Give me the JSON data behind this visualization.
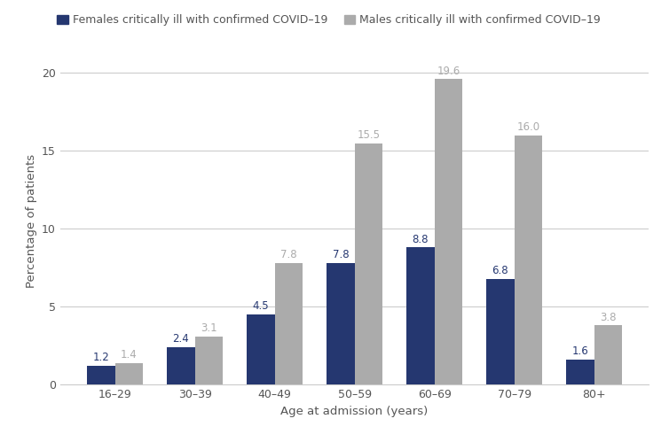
{
  "categories": [
    "16–29",
    "30–39",
    "40–49",
    "50–59",
    "60–69",
    "70–79",
    "80+"
  ],
  "females": [
    1.2,
    2.4,
    4.5,
    7.8,
    8.8,
    6.8,
    1.6
  ],
  "males": [
    1.4,
    3.1,
    7.8,
    15.5,
    19.6,
    16.0,
    3.8
  ],
  "female_color": "#253770",
  "male_color": "#ABABAB",
  "female_label": "Females critically ill with confirmed COVID–19",
  "male_label": "Males critically ill with confirmed COVID–19",
  "xlabel": "Age at admission (years)",
  "ylabel": "Percentage of patients",
  "ylim": [
    0,
    21
  ],
  "yticks": [
    0,
    5,
    10,
    15,
    20
  ],
  "bar_width": 0.35,
  "background_color": "#ffffff",
  "grid_color": "#cccccc",
  "label_color_female": "#253770",
  "label_color_male": "#ABABAB",
  "label_fontsize": 8.5,
  "axis_fontsize": 9.5,
  "tick_fontsize": 9,
  "legend_fontsize": 9
}
